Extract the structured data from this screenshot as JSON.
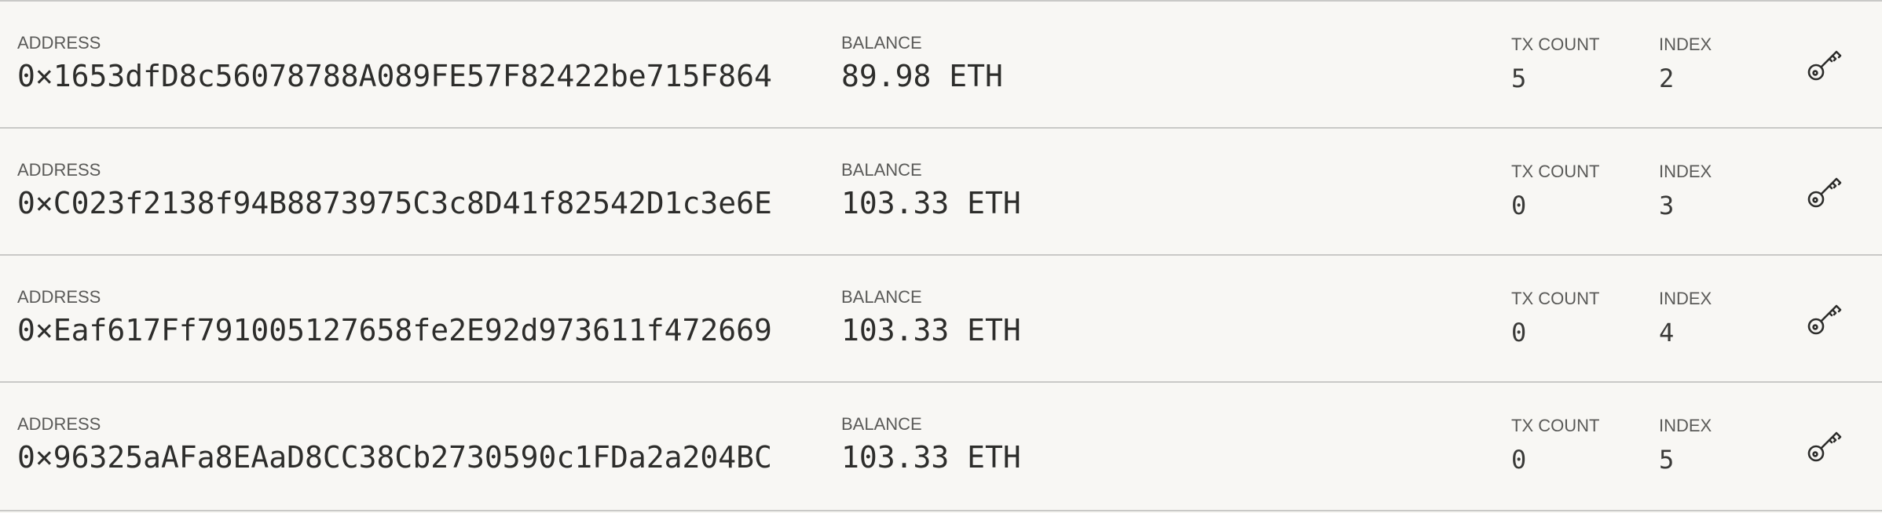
{
  "accounts": [
    {
      "address_label": "ADDRESS",
      "address": "0×1653dfD8c56078788A089FE57F82422be715F864",
      "balance_label": "BALANCE",
      "balance": "89.98 ETH",
      "tx_count_label": "TX COUNT",
      "tx_count": "5",
      "index_label": "INDEX",
      "index": "2",
      "action_icon": "key-icon"
    },
    {
      "address_label": "ADDRESS",
      "address": "0×C023f2138f94B8873975C3c8D41f82542D1c3e6E",
      "balance_label": "BALANCE",
      "balance": "103.33 ETH",
      "tx_count_label": "TX COUNT",
      "tx_count": "0",
      "index_label": "INDEX",
      "index": "3",
      "action_icon": "key-icon"
    },
    {
      "address_label": "ADDRESS",
      "address": "0×Eaf617Ff791005127658fe2E92d973611f472669",
      "balance_label": "BALANCE",
      "balance": "103.33 ETH",
      "tx_count_label": "TX COUNT",
      "tx_count": "0",
      "index_label": "INDEX",
      "index": "4",
      "action_icon": "key-icon"
    },
    {
      "address_label": "ADDRESS",
      "address": "0×96325aAFa8EAaD8CC38Cb2730590c1FDa2a204BC",
      "balance_label": "BALANCE",
      "balance": "103.33 ETH",
      "tx_count_label": "TX COUNT",
      "tx_count": "0",
      "index_label": "INDEX",
      "index": "5",
      "action_icon": "key-icon"
    }
  ],
  "colors": {
    "background": "#f8f7f4",
    "divider": "#c9c9c7",
    "label": "#5a5a58",
    "value": "#2d2d2b"
  }
}
